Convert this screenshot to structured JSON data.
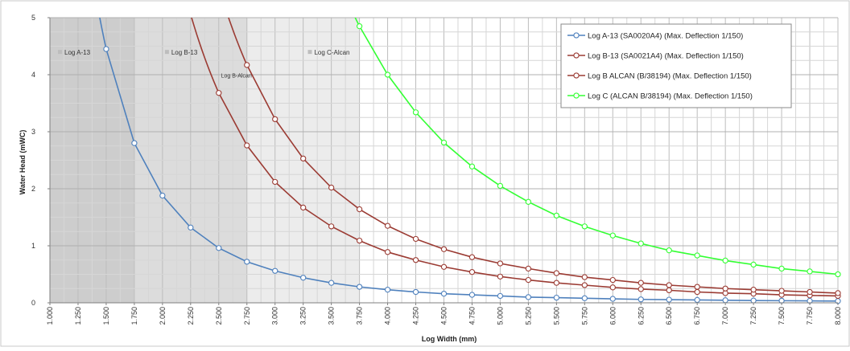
{
  "chart_data": {
    "type": "line",
    "xlabel": "Log Width (mm)",
    "ylabel": "Water Head (mWC)",
    "xlim": [
      1.0,
      8.0
    ],
    "ylim": [
      0,
      5
    ],
    "x_ticks": [
      "1.000",
      "1.250",
      "1.500",
      "1.750",
      "2.000",
      "2.250",
      "2.500",
      "2.750",
      "3.000",
      "3.250",
      "3.500",
      "3.750",
      "4.000",
      "4.250",
      "4.500",
      "4.750",
      "5.000",
      "5.250",
      "5.500",
      "5.750",
      "6.000",
      "6.250",
      "6.500",
      "6.750",
      "7.000",
      "7.250",
      "7.500",
      "7.750",
      "8.000"
    ],
    "y_ticks": [
      "0",
      "1",
      "2",
      "3",
      "4",
      "5"
    ],
    "grid": true,
    "legend_position": "top-right",
    "regions": [
      {
        "label": "Log A-13",
        "x_end": 1.75,
        "fill": "#cdcdcd",
        "label_x": 1.0,
        "label_y": 4.35
      },
      {
        "label": "Log B-13",
        "x_end": 2.75,
        "fill": "#dcdcdc",
        "label_x": 1.95,
        "label_y": 4.35
      },
      {
        "label": "Log C-Alcan",
        "x_end": 3.75,
        "fill": "#ececec",
        "label_x": 3.22,
        "label_y": 4.35
      }
    ],
    "annotations": [
      {
        "text": "Log B-Alcan",
        "x": 2.52,
        "y": 3.95
      }
    ],
    "series": [
      {
        "name": "Log A-13 (SA0020A4)  (Max. Deflection 1/150)",
        "color": "#4f81bd",
        "x": [
          1.5,
          1.75,
          2.0,
          2.25,
          2.5,
          2.75,
          3.0,
          3.25,
          3.5,
          3.75,
          4.0,
          4.25,
          4.5,
          4.75,
          5.0,
          5.25,
          5.5,
          5.75,
          6.0,
          6.25,
          6.5,
          6.75,
          7.0,
          7.25,
          7.5,
          7.75,
          8.0
        ],
        "values": [
          4.45,
          2.8,
          1.88,
          1.32,
          0.96,
          0.72,
          0.56,
          0.44,
          0.35,
          0.28,
          0.23,
          0.19,
          0.16,
          0.14,
          0.12,
          0.1,
          0.09,
          0.08,
          0.07,
          0.06,
          0.055,
          0.05,
          0.045,
          0.04,
          0.037,
          0.034,
          0.031
        ]
      },
      {
        "name": "Log B-13 (SA0021A4)  (Max. Deflection 1/150)",
        "color": "#9b3b33",
        "x": [
          2.5,
          2.75,
          3.0,
          3.25,
          3.5,
          3.75,
          4.0,
          4.25,
          4.5,
          4.75,
          5.0,
          5.25,
          5.5,
          5.75,
          6.0,
          6.25,
          6.5,
          6.75,
          7.0,
          7.25,
          7.5,
          7.75,
          8.0
        ],
        "values": [
          3.68,
          2.76,
          2.12,
          1.67,
          1.34,
          1.09,
          0.89,
          0.75,
          0.63,
          0.54,
          0.46,
          0.4,
          0.35,
          0.31,
          0.27,
          0.24,
          0.22,
          0.19,
          0.17,
          0.16,
          0.14,
          0.13,
          0.12
        ]
      },
      {
        "name": "Log B ALCAN (B/38194)  (Max. Deflection 1/150)",
        "color": "#9b3b33",
        "x": [
          2.75,
          3.0,
          3.25,
          3.5,
          3.75,
          4.0,
          4.25,
          4.5,
          4.75,
          5.0,
          5.25,
          5.5,
          5.75,
          6.0,
          6.25,
          6.5,
          6.75,
          7.0,
          7.25,
          7.5,
          7.75,
          8.0
        ],
        "values": [
          4.17,
          3.22,
          2.53,
          2.02,
          1.64,
          1.35,
          1.12,
          0.94,
          0.8,
          0.69,
          0.6,
          0.52,
          0.45,
          0.4,
          0.35,
          0.31,
          0.28,
          0.25,
          0.23,
          0.21,
          0.19,
          0.17
        ]
      },
      {
        "name": "Log C (ALCAN B/38194)  (Max. Deflection 1/150)",
        "color": "#33ff33",
        "x": [
          3.75,
          4.0,
          4.25,
          4.5,
          4.75,
          5.0,
          5.25,
          5.5,
          5.75,
          6.0,
          6.25,
          6.5,
          6.75,
          7.0,
          7.25,
          7.5,
          7.75,
          8.0
        ],
        "values": [
          4.85,
          4.0,
          3.34,
          2.81,
          2.39,
          2.05,
          1.77,
          1.53,
          1.34,
          1.18,
          1.04,
          0.92,
          0.83,
          0.74,
          0.67,
          0.6,
          0.55,
          0.5
        ]
      }
    ]
  }
}
